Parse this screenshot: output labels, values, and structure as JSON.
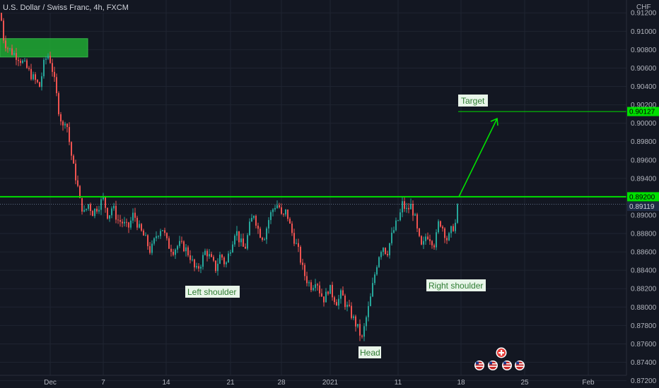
{
  "chart_data": {
    "type": "candlestick",
    "title": "U.S. Dollar / Swiss Franc, 4h, FXCM",
    "currency": "CHF",
    "ylim": [
      0.8712,
      0.9134
    ],
    "x_ticks": [
      "Dec",
      "7",
      "14",
      "21",
      "28",
      "2021",
      "11",
      "18",
      "25",
      "Feb"
    ],
    "y_ticks": [
      "0.91200",
      "0.91000",
      "0.90800",
      "0.90600",
      "0.90400",
      "0.90200",
      "0.90000",
      "0.89800",
      "0.89600",
      "0.89400",
      "0.89200",
      "0.89000",
      "0.88800",
      "0.88600",
      "0.88400",
      "0.88200",
      "0.88000",
      "0.87800",
      "0.87600",
      "0.87400",
      "0.87200"
    ],
    "price_labels": {
      "target": {
        "text": "0.90127",
        "value": 0.90127
      },
      "neckline": {
        "text": "0.89200",
        "value": 0.892
      },
      "current": {
        "text": "0.89119",
        "value": 0.89119
      }
    },
    "annotations": {
      "target": "Target",
      "left_shoulder": "Left shoulder",
      "head": "Head",
      "right_shoulder": "Right shoulder"
    },
    "zone": {
      "y_low": 0.9072,
      "y_high": 0.9092
    },
    "colors": {
      "up": "#26a69a",
      "down": "#ef5350",
      "line": "#00e000",
      "zone": "#1faa33"
    },
    "path_points": [
      [
        0,
        0.912
      ],
      [
        3,
        0.9095
      ],
      [
        8,
        0.9084
      ],
      [
        15,
        0.9078
      ],
      [
        25,
        0.9072
      ],
      [
        35,
        0.9062
      ],
      [
        45,
        0.905
      ],
      [
        55,
        0.904
      ],
      [
        62,
        0.9068
      ],
      [
        68,
        0.9075
      ],
      [
        74,
        0.9055
      ],
      [
        78,
        0.9035
      ],
      [
        82,
        0.9015
      ],
      [
        88,
        0.8995
      ],
      [
        92,
        0.9008
      ],
      [
        96,
        0.8985
      ],
      [
        102,
        0.8955
      ],
      [
        108,
        0.8935
      ],
      [
        112,
        0.8915
      ],
      [
        118,
        0.8902
      ],
      [
        124,
        0.8912
      ],
      [
        130,
        0.8903
      ],
      [
        138,
        0.891
      ],
      [
        145,
        0.8918
      ],
      [
        152,
        0.8898
      ],
      [
        158,
        0.891
      ],
      [
        165,
        0.8895
      ],
      [
        172,
        0.8892
      ],
      [
        180,
        0.8885
      ],
      [
        188,
        0.8902
      ],
      [
        196,
        0.8885
      ],
      [
        204,
        0.8875
      ],
      [
        212,
        0.886
      ],
      [
        220,
        0.8878
      ],
      [
        228,
        0.8888
      ],
      [
        236,
        0.8868
      ],
      [
        244,
        0.8862
      ],
      [
        252,
        0.8868
      ],
      [
        260,
        0.8865
      ],
      [
        268,
        0.8855
      ],
      [
        276,
        0.8838
      ],
      [
        283,
        0.8848
      ],
      [
        290,
        0.8862
      ],
      [
        297,
        0.8852
      ],
      [
        304,
        0.8842
      ],
      [
        311,
        0.8858
      ],
      [
        318,
        0.8845
      ],
      [
        325,
        0.8865
      ],
      [
        332,
        0.8885
      ],
      [
        338,
        0.8872
      ],
      [
        345,
        0.8862
      ],
      [
        352,
        0.8888
      ],
      [
        358,
        0.8902
      ],
      [
        365,
        0.8882
      ],
      [
        372,
        0.8875
      ],
      [
        380,
        0.8898
      ],
      [
        387,
        0.891
      ],
      [
        393,
        0.8912
      ],
      [
        398,
        0.8895
      ],
      [
        404,
        0.8905
      ],
      [
        410,
        0.8885
      ],
      [
        416,
        0.8872
      ],
      [
        422,
        0.8858
      ],
      [
        428,
        0.8838
      ],
      [
        434,
        0.8828
      ],
      [
        440,
        0.8822
      ],
      [
        446,
        0.8832
      ],
      [
        452,
        0.8815
      ],
      [
        458,
        0.8808
      ],
      [
        464,
        0.8822
      ],
      [
        470,
        0.8812
      ],
      [
        476,
        0.8805
      ],
      [
        482,
        0.8815
      ],
      [
        488,
        0.8802
      ],
      [
        494,
        0.8795
      ],
      [
        500,
        0.8785
      ],
      [
        506,
        0.8775
      ],
      [
        511,
        0.8765
      ],
      [
        516,
        0.8785
      ],
      [
        522,
        0.8805
      ],
      [
        528,
        0.8832
      ],
      [
        534,
        0.8855
      ],
      [
        540,
        0.8868
      ],
      [
        546,
        0.8858
      ],
      [
        552,
        0.8875
      ],
      [
        558,
        0.8888
      ],
      [
        564,
        0.8898
      ],
      [
        568,
        0.8912
      ],
      [
        574,
        0.8905
      ],
      [
        580,
        0.891
      ],
      [
        585,
        0.89
      ],
      [
        590,
        0.8878
      ],
      [
        596,
        0.8862
      ],
      [
        602,
        0.888
      ],
      [
        608,
        0.8875
      ],
      [
        614,
        0.8868
      ],
      [
        620,
        0.8895
      ],
      [
        626,
        0.8885
      ],
      [
        632,
        0.8872
      ],
      [
        638,
        0.8885
      ],
      [
        644,
        0.8892
      ],
      [
        648,
        0.89119
      ]
    ]
  }
}
